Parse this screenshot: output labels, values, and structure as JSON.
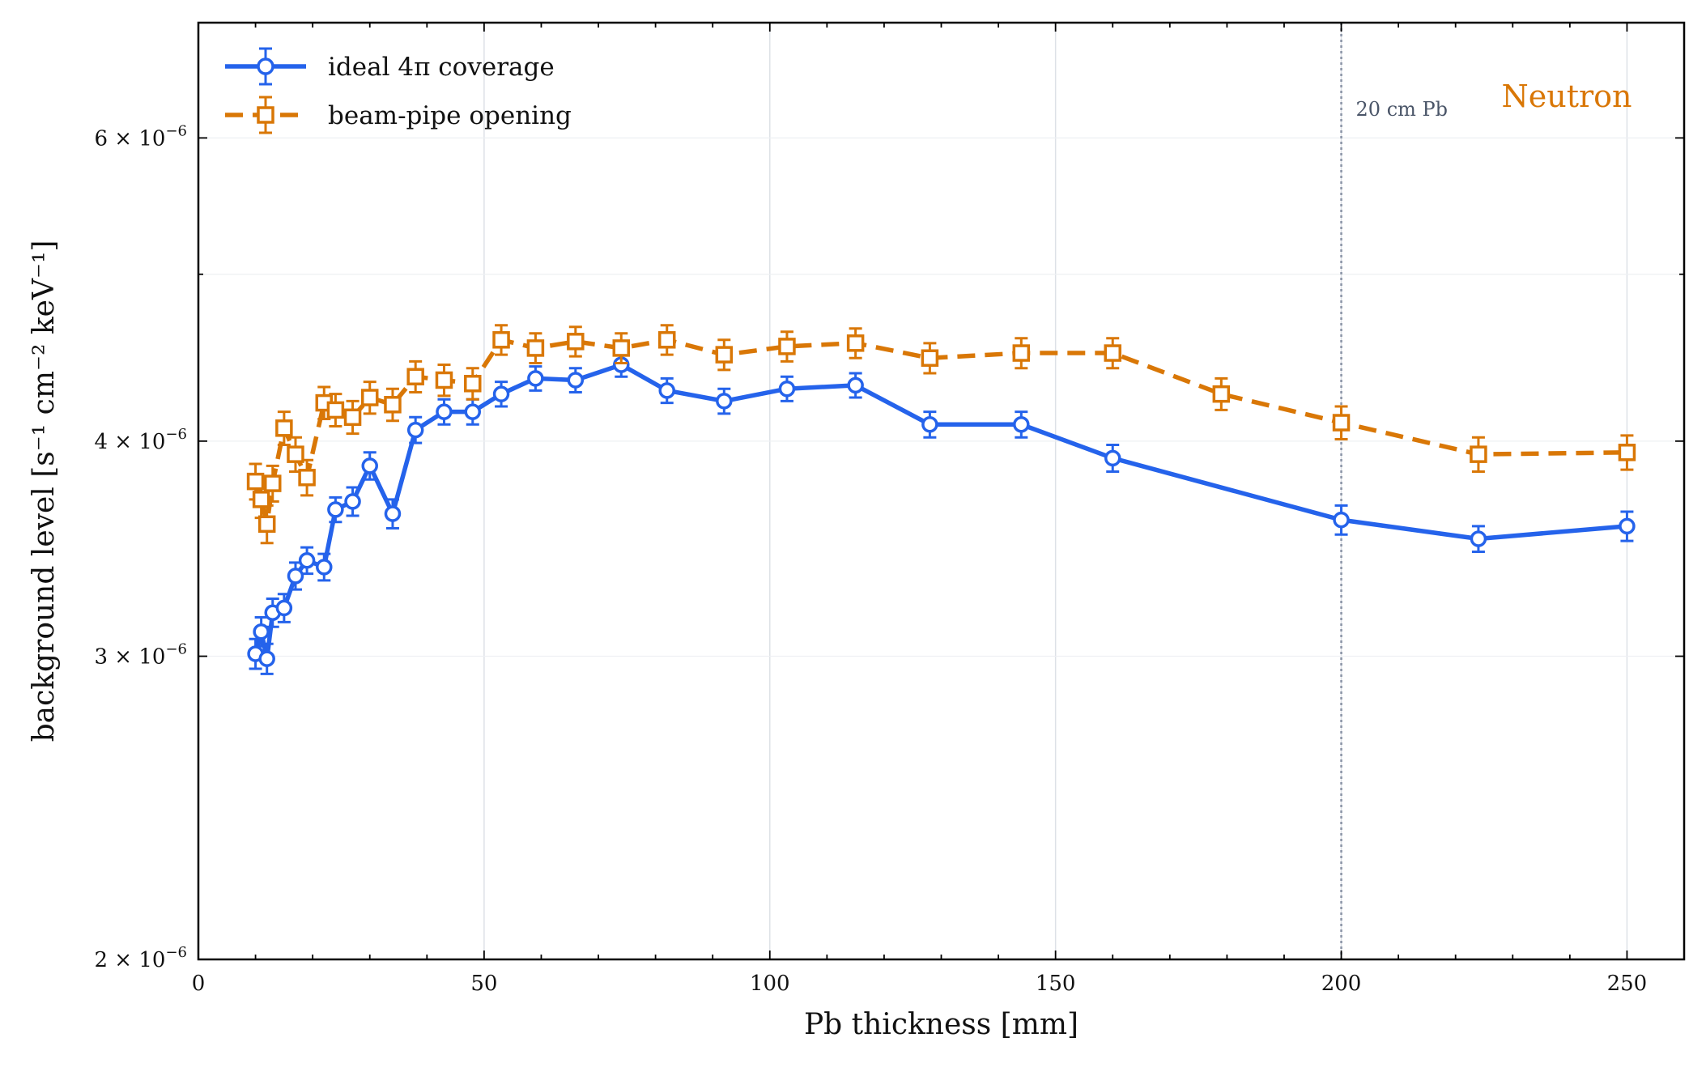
{
  "chart_data": {
    "type": "line",
    "xlabel": "Pb thickness [mm]",
    "ylabel": "background level [s⁻¹ cm⁻² keV⁻¹]",
    "xlim": [
      0,
      260
    ],
    "ylim": [
      2e-06,
      7e-06
    ],
    "y_scale": "log",
    "grid": true,
    "legend_position": "top-left",
    "x_ticks": [
      0,
      50,
      100,
      150,
      200,
      250
    ],
    "x_tick_labels": [
      "0",
      "50",
      "100",
      "150",
      "200",
      "250"
    ],
    "y_ticks": [
      2e-06,
      3e-06,
      4e-06,
      6e-06
    ],
    "y_tick_labels": [
      {
        "mant": "2",
        "exp": "−6"
      },
      {
        "mant": "3",
        "exp": "−6"
      },
      {
        "mant": "4",
        "exp": "−6"
      },
      {
        "mant": "6",
        "exp": "−6"
      }
    ],
    "y_times": "× 10",
    "series": [
      {
        "name": "ideal 4π coverage",
        "color": "#2563eb",
        "marker": "circle",
        "line_style": "solid",
        "x": [
          10,
          11,
          12,
          13,
          15,
          17,
          19,
          22,
          24,
          27,
          30,
          34,
          38,
          43,
          48,
          53,
          59,
          66,
          74,
          82,
          92,
          103,
          115,
          128,
          144,
          160,
          200,
          224,
          250
        ],
        "y": [
          3.01e-06,
          3.1e-06,
          2.99e-06,
          3.18e-06,
          3.2e-06,
          3.34e-06,
          3.41e-06,
          3.38e-06,
          3.65e-06,
          3.69e-06,
          3.87e-06,
          3.63e-06,
          4.06e-06,
          4.16e-06,
          4.16e-06,
          4.26e-06,
          4.35e-06,
          4.34e-06,
          4.43e-06,
          4.28e-06,
          4.22e-06,
          4.29e-06,
          4.31e-06,
          4.09e-06,
          4.09e-06,
          3.91e-06,
          3.6e-06,
          3.51e-06,
          3.57e-06
        ],
        "y_err": [
          6e-08,
          6e-08,
          6e-08,
          6e-08,
          6e-08,
          6e-08,
          6e-08,
          6e-08,
          6e-08,
          7e-08,
          7e-08,
          7e-08,
          7e-08,
          7e-08,
          7e-08,
          7e-08,
          7e-08,
          7e-08,
          7e-08,
          7e-08,
          7e-08,
          7e-08,
          7e-08,
          7e-08,
          7e-08,
          7e-08,
          7e-08,
          6e-08,
          7e-08
        ]
      },
      {
        "name": "beam-pipe opening",
        "color": "#d97706",
        "marker": "square",
        "line_style": "dashed",
        "x": [
          10,
          11,
          12,
          13,
          15,
          17,
          19,
          22,
          24,
          27,
          30,
          34,
          38,
          43,
          48,
          53,
          59,
          66,
          74,
          82,
          92,
          103,
          115,
          128,
          144,
          160,
          179,
          200,
          224,
          250
        ],
        "y": [
          3.79e-06,
          3.7e-06,
          3.58e-06,
          3.78e-06,
          4.07e-06,
          3.93e-06,
          3.81e-06,
          4.21e-06,
          4.17e-06,
          4.13e-06,
          4.24e-06,
          4.2e-06,
          4.36e-06,
          4.34e-06,
          4.32e-06,
          4.58e-06,
          4.53e-06,
          4.57e-06,
          4.53e-06,
          4.58e-06,
          4.49e-06,
          4.54e-06,
          4.56e-06,
          4.47e-06,
          4.5e-06,
          4.5e-06,
          4.26e-06,
          4.1e-06,
          3.93e-06,
          3.94e-06
        ],
        "y_err": [
          9e-08,
          9e-08,
          9e-08,
          9e-08,
          9e-08,
          9e-08,
          9e-08,
          9e-08,
          9e-08,
          9e-08,
          9e-08,
          9e-08,
          9e-08,
          9e-08,
          9e-08,
          9e-08,
          9e-08,
          9e-08,
          9e-08,
          9e-08,
          9e-08,
          9e-08,
          9e-08,
          9e-08,
          9e-08,
          9e-08,
          9e-08,
          9e-08,
          9e-08,
          9e-08
        ]
      }
    ],
    "annotations": [
      {
        "text": "20 cm Pb",
        "x_line": 200
      },
      {
        "text": "Neutron",
        "position": "top-right"
      }
    ]
  }
}
